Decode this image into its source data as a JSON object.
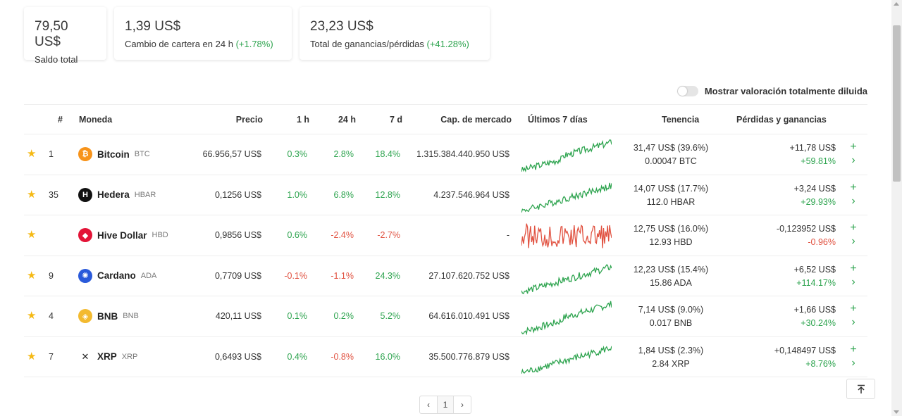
{
  "summary": {
    "total_balance": {
      "value": "79,50 US$",
      "label": "Saldo total"
    },
    "change_24h": {
      "value": "1,39 US$",
      "label": "Cambio de cartera en 24 h",
      "pct": "(+1.78%)"
    },
    "total_pl": {
      "value": "23,23 US$",
      "label": "Total de ganancias/pérdidas",
      "pct": "(+41.28%)"
    }
  },
  "toggle": {
    "label": "Mostrar valoración totalmente diluida"
  },
  "headers": {
    "rank": "#",
    "coin": "Moneda",
    "price": "Precio",
    "h1": "1 h",
    "h24": "24 h",
    "d7": "7 d",
    "mcap": "Cap. de mercado",
    "last7": "Últimos 7 días",
    "holding": "Tenencia",
    "pl": "Pérdidas y ganancias"
  },
  "rows": [
    {
      "rank": "1",
      "name": "Bitcoin",
      "symbol": "BTC",
      "price": "66.956,57 US$",
      "h1": "0.3%",
      "h24": "2.8%",
      "d7": "18.4%",
      "mcap": "1.315.384.440.950 US$",
      "holding_value": "31,47 US$ (39.6%)",
      "holding_amount": "0.00047 BTC",
      "pl_value": "+11,78 US$",
      "pl_pct": "+59.81%",
      "icon": "bitcoin-icon",
      "icon_color": "#f7931a",
      "icon_glyph": "₿",
      "trend": "up",
      "h1_dir": "up",
      "h24_dir": "up",
      "d7_dir": "up",
      "pl_dir": "up"
    },
    {
      "rank": "35",
      "name": "Hedera",
      "symbol": "HBAR",
      "price": "0,1256 US$",
      "h1": "1.0%",
      "h24": "6.8%",
      "d7": "12.8%",
      "mcap": "4.237.546.964 US$",
      "holding_value": "14,07 US$ (17.7%)",
      "holding_amount": "112.0 HBAR",
      "pl_value": "+3,24 US$",
      "pl_pct": "+29.93%",
      "icon": "hedera-icon",
      "icon_color": "#111111",
      "icon_glyph": "H",
      "trend": "up",
      "h1_dir": "up",
      "h24_dir": "up",
      "d7_dir": "up",
      "pl_dir": "up"
    },
    {
      "rank": "",
      "name": "Hive Dollar",
      "symbol": "HBD",
      "price": "0,9856 US$",
      "h1": "0.6%",
      "h24": "-2.4%",
      "d7": "-2.7%",
      "mcap": "-",
      "holding_value": "12,75 US$ (16.0%)",
      "holding_amount": "12.93 HBD",
      "pl_value": "-0,123952 US$",
      "pl_pct": "-0.96%",
      "icon": "hive-dollar-icon",
      "icon_color": "#e31337",
      "icon_glyph": "◆",
      "trend": "down",
      "h1_dir": "up",
      "h24_dir": "down",
      "d7_dir": "down",
      "pl_dir": "down"
    },
    {
      "rank": "9",
      "name": "Cardano",
      "symbol": "ADA",
      "price": "0,7709 US$",
      "h1": "-0.1%",
      "h24": "-1.1%",
      "d7": "24.3%",
      "mcap": "27.107.620.752 US$",
      "holding_value": "12,23 US$ (15.4%)",
      "holding_amount": "15.86 ADA",
      "pl_value": "+6,52 US$",
      "pl_pct": "+114.17%",
      "icon": "cardano-icon",
      "icon_color": "#2a5ada",
      "icon_glyph": "✺",
      "trend": "up",
      "h1_dir": "down",
      "h24_dir": "down",
      "d7_dir": "up",
      "pl_dir": "up"
    },
    {
      "rank": "4",
      "name": "BNB",
      "symbol": "BNB",
      "price": "420,11 US$",
      "h1": "0.1%",
      "h24": "0.2%",
      "d7": "5.2%",
      "mcap": "64.616.010.491 US$",
      "holding_value": "7,14 US$ (9.0%)",
      "holding_amount": "0.017 BNB",
      "pl_value": "+1,66 US$",
      "pl_pct": "+30.24%",
      "icon": "bnb-icon",
      "icon_color": "#f3ba2f",
      "icon_glyph": "◈",
      "trend": "up",
      "h1_dir": "up",
      "h24_dir": "up",
      "d7_dir": "up",
      "pl_dir": "up"
    },
    {
      "rank": "7",
      "name": "XRP",
      "symbol": "XRP",
      "price": "0,6493 US$",
      "h1": "0.4%",
      "h24": "-0.8%",
      "d7": "16.0%",
      "mcap": "35.500.776.879 US$",
      "holding_value": "1,84 US$ (2.3%)",
      "holding_amount": "2.84 XRP",
      "pl_value": "+0,148497 US$",
      "pl_pct": "+8.76%",
      "icon": "xrp-icon",
      "icon_color": "#ffffff",
      "icon_glyph": "✕",
      "trend": "up",
      "h1_dir": "up",
      "h24_dir": "down",
      "d7_dir": "up",
      "pl_dir": "up"
    }
  ],
  "pagination": {
    "prev": "‹",
    "page": "1",
    "next": "›"
  },
  "colors": {
    "up": "#2ea44f",
    "down": "#e15241"
  }
}
